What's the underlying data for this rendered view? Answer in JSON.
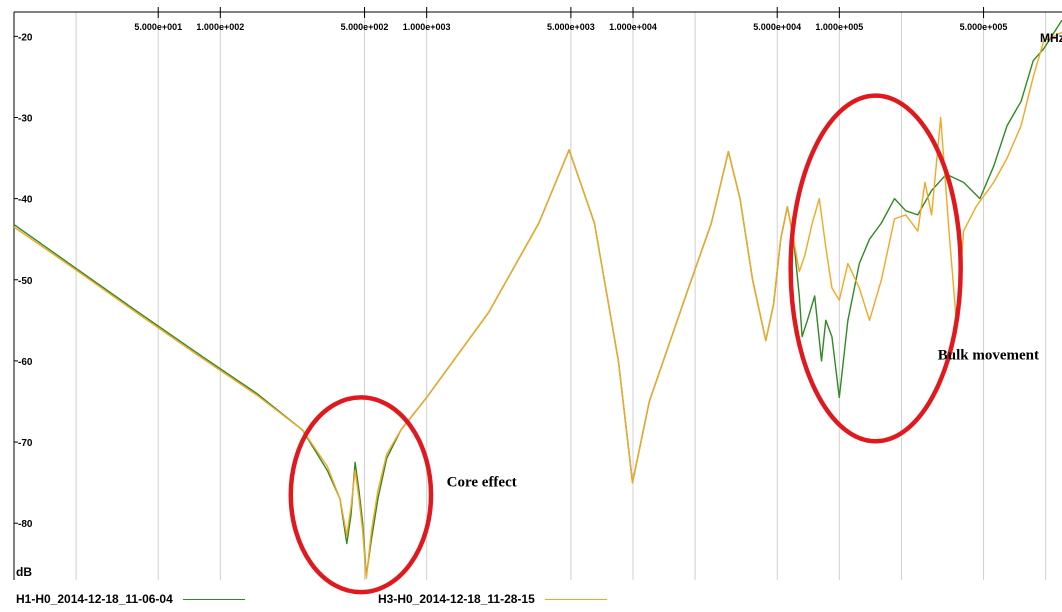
{
  "chart_data": {
    "type": "line",
    "x_scale": "log",
    "xlim": [
      10,
      1200000
    ],
    "ylim": [
      -87,
      -17
    ],
    "x_unit": "MHz",
    "y_unit": "dB",
    "x_tick_labels": [
      {
        "x": 50,
        "label": "5.000e+001"
      },
      {
        "x": 100,
        "label": "1.000e+002"
      },
      {
        "x": 500,
        "label": "5.000e+002"
      },
      {
        "x": 1000,
        "label": "1.000e+003"
      },
      {
        "x": 5000,
        "label": "5.000e+003"
      },
      {
        "x": 10000,
        "label": "1.000e+004"
      },
      {
        "x": 50000,
        "label": "5.000e+004"
      },
      {
        "x": 100000,
        "label": "1.000e+005"
      },
      {
        "x": 500000,
        "label": "5.000e+005"
      }
    ],
    "x_gridlines": [
      20,
      50,
      100,
      500,
      1000,
      5000,
      10000,
      20000,
      50000,
      100000,
      200000,
      500000,
      1000000
    ],
    "y_ticks": [
      -20,
      -30,
      -40,
      -50,
      -60,
      -70,
      -80
    ],
    "grid": true,
    "legend_position": "bottom",
    "series": [
      {
        "name": "H1-H0_2014-12-18_11-06-04",
        "color": "#2e8b22",
        "points": [
          [
            10,
            -43.2
          ],
          [
            20,
            -48.6
          ],
          [
            40,
            -54
          ],
          [
            80,
            -59.3
          ],
          [
            150,
            -64
          ],
          [
            250,
            -68.5
          ],
          [
            330,
            -73.5
          ],
          [
            380,
            -77
          ],
          [
            410,
            -82.5
          ],
          [
            430,
            -79
          ],
          [
            450,
            -72.5
          ],
          [
            470,
            -76
          ],
          [
            490,
            -80
          ],
          [
            510,
            -86.5
          ],
          [
            540,
            -82
          ],
          [
            580,
            -77
          ],
          [
            640,
            -72
          ],
          [
            750,
            -68.5
          ],
          [
            1000,
            -64.5
          ],
          [
            2000,
            -54
          ],
          [
            3500,
            -43
          ],
          [
            4900,
            -34
          ],
          [
            6500,
            -43
          ],
          [
            8500,
            -60
          ],
          [
            9950,
            -75
          ],
          [
            12000,
            -65
          ],
          [
            18000,
            -52
          ],
          [
            24000,
            -43
          ],
          [
            29000,
            -34.2
          ],
          [
            33000,
            -40
          ],
          [
            38000,
            -50
          ],
          [
            44000,
            -57.5
          ],
          [
            48000,
            -53
          ],
          [
            52000,
            -45
          ],
          [
            56000,
            -41
          ],
          [
            60000,
            -45
          ],
          [
            64000,
            -52
          ],
          [
            66000,
            -57
          ],
          [
            70000,
            -55
          ],
          [
            76000,
            -52
          ],
          [
            82000,
            -60
          ],
          [
            86000,
            -55
          ],
          [
            92000,
            -57
          ],
          [
            100000,
            -64.5
          ],
          [
            110000,
            -55
          ],
          [
            125000,
            -48
          ],
          [
            140000,
            -45
          ],
          [
            160000,
            -43
          ],
          [
            185000,
            -40
          ],
          [
            210000,
            -41.5
          ],
          [
            240000,
            -42
          ],
          [
            280000,
            -39
          ],
          [
            330000,
            -37
          ],
          [
            400000,
            -38
          ],
          [
            480000,
            -40
          ],
          [
            560000,
            -36
          ],
          [
            650000,
            -31
          ],
          [
            760000,
            -28
          ],
          [
            870000,
            -23
          ],
          [
            980000,
            -21.5
          ],
          [
            1100000,
            -19.5
          ],
          [
            1200000,
            -18
          ]
        ]
      },
      {
        "name": "H3-H0_2014-12-18_11-28-15",
        "color": "#f5a623",
        "points": [
          [
            10,
            -43.5
          ],
          [
            20,
            -48.8
          ],
          [
            40,
            -54.2
          ],
          [
            80,
            -59.5
          ],
          [
            150,
            -64.2
          ],
          [
            250,
            -68.5
          ],
          [
            330,
            -73
          ],
          [
            380,
            -77
          ],
          [
            410,
            -81.5
          ],
          [
            430,
            -78
          ],
          [
            450,
            -73.5
          ],
          [
            470,
            -77
          ],
          [
            490,
            -81
          ],
          [
            510,
            -86.8
          ],
          [
            540,
            -81
          ],
          [
            580,
            -76
          ],
          [
            640,
            -71.5
          ],
          [
            750,
            -68.5
          ],
          [
            1000,
            -64.5
          ],
          [
            2000,
            -54
          ],
          [
            3500,
            -43
          ],
          [
            4900,
            -34
          ],
          [
            6500,
            -43
          ],
          [
            8500,
            -60
          ],
          [
            9950,
            -75
          ],
          [
            12000,
            -65
          ],
          [
            18000,
            -52
          ],
          [
            24000,
            -43
          ],
          [
            29000,
            -34.2
          ],
          [
            33000,
            -40
          ],
          [
            38000,
            -50
          ],
          [
            44000,
            -57.5
          ],
          [
            48000,
            -53
          ],
          [
            52000,
            -45
          ],
          [
            56000,
            -41
          ],
          [
            60000,
            -45
          ],
          [
            64000,
            -49
          ],
          [
            68000,
            -47
          ],
          [
            74000,
            -43
          ],
          [
            80000,
            -40
          ],
          [
            86000,
            -46
          ],
          [
            92000,
            -51
          ],
          [
            100000,
            -52.5
          ],
          [
            110000,
            -48
          ],
          [
            125000,
            -51
          ],
          [
            140000,
            -55
          ],
          [
            160000,
            -50
          ],
          [
            185000,
            -42.5
          ],
          [
            210000,
            -42
          ],
          [
            240000,
            -44
          ],
          [
            260000,
            -38
          ],
          [
            280000,
            -42
          ],
          [
            310000,
            -30
          ],
          [
            340000,
            -44
          ],
          [
            370000,
            -55.5
          ],
          [
            400000,
            -44
          ],
          [
            460000,
            -41
          ],
          [
            560000,
            -38
          ],
          [
            650000,
            -35
          ],
          [
            760000,
            -31
          ],
          [
            870000,
            -25
          ],
          [
            980000,
            -20.5
          ],
          [
            1100000,
            -20
          ],
          [
            1200000,
            -19.5
          ]
        ]
      }
    ],
    "annotations": [
      {
        "text": "Core effect",
        "x": 1250,
        "y": -75.5
      },
      {
        "text": "Bulk movement",
        "x": 300000,
        "y": -59.8
      }
    ],
    "ellipses": [
      {
        "center": [
          480,
          -76.5
        ],
        "x_range": [
          230,
          1100
        ],
        "y_range": [
          -86.5,
          -62.5
        ]
      },
      {
        "center": [
          150000,
          -48.6
        ],
        "x_range": [
          60000,
          400000
        ],
        "y_range": [
          -69.8,
          -27.2
        ]
      }
    ]
  }
}
